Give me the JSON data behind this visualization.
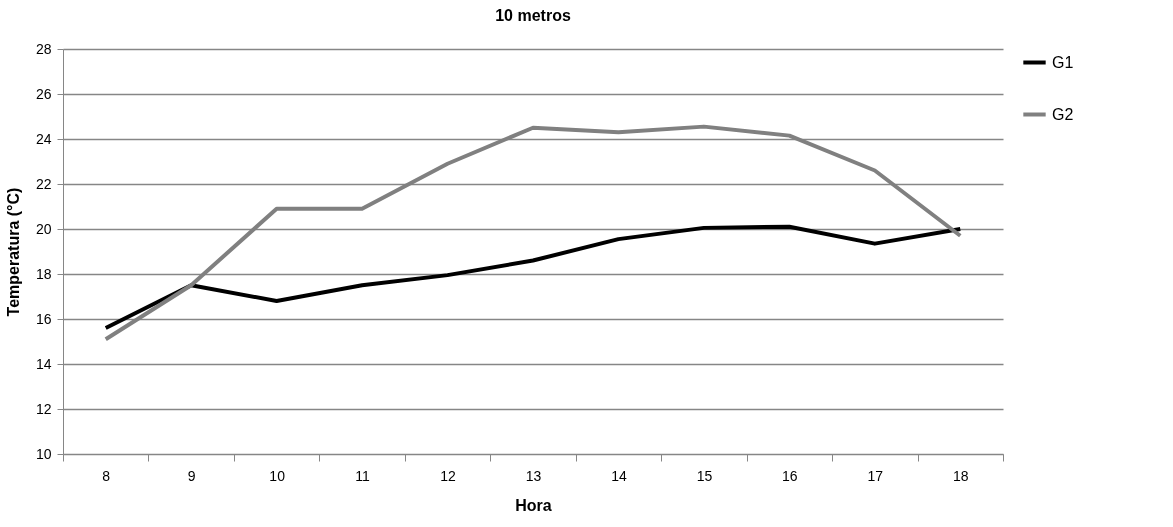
{
  "chart_data": {
    "type": "line",
    "title": "10 metros",
    "xlabel": "Hora",
    "ylabel": "Temperatura (°C)",
    "categories": [
      "8",
      "9",
      "10",
      "11",
      "12",
      "13",
      "14",
      "15",
      "16",
      "17",
      "18"
    ],
    "series": [
      {
        "name": "G1",
        "color": "#000000",
        "values": [
          15.6,
          17.5,
          16.8,
          17.5,
          17.95,
          18.6,
          19.55,
          20.05,
          20.1,
          19.35,
          20.0
        ]
      },
      {
        "name": "G2",
        "color": "#808080",
        "values": [
          15.1,
          17.5,
          20.9,
          20.9,
          22.9,
          24.5,
          24.3,
          24.55,
          24.15,
          22.6,
          19.7
        ]
      }
    ],
    "ylim": [
      10,
      28
    ],
    "yticks": [
      10,
      12,
      14,
      16,
      18,
      20,
      22,
      24,
      26,
      28
    ],
    "grid": "y",
    "legend": "right",
    "marker": "none",
    "line_style": "solid"
  }
}
